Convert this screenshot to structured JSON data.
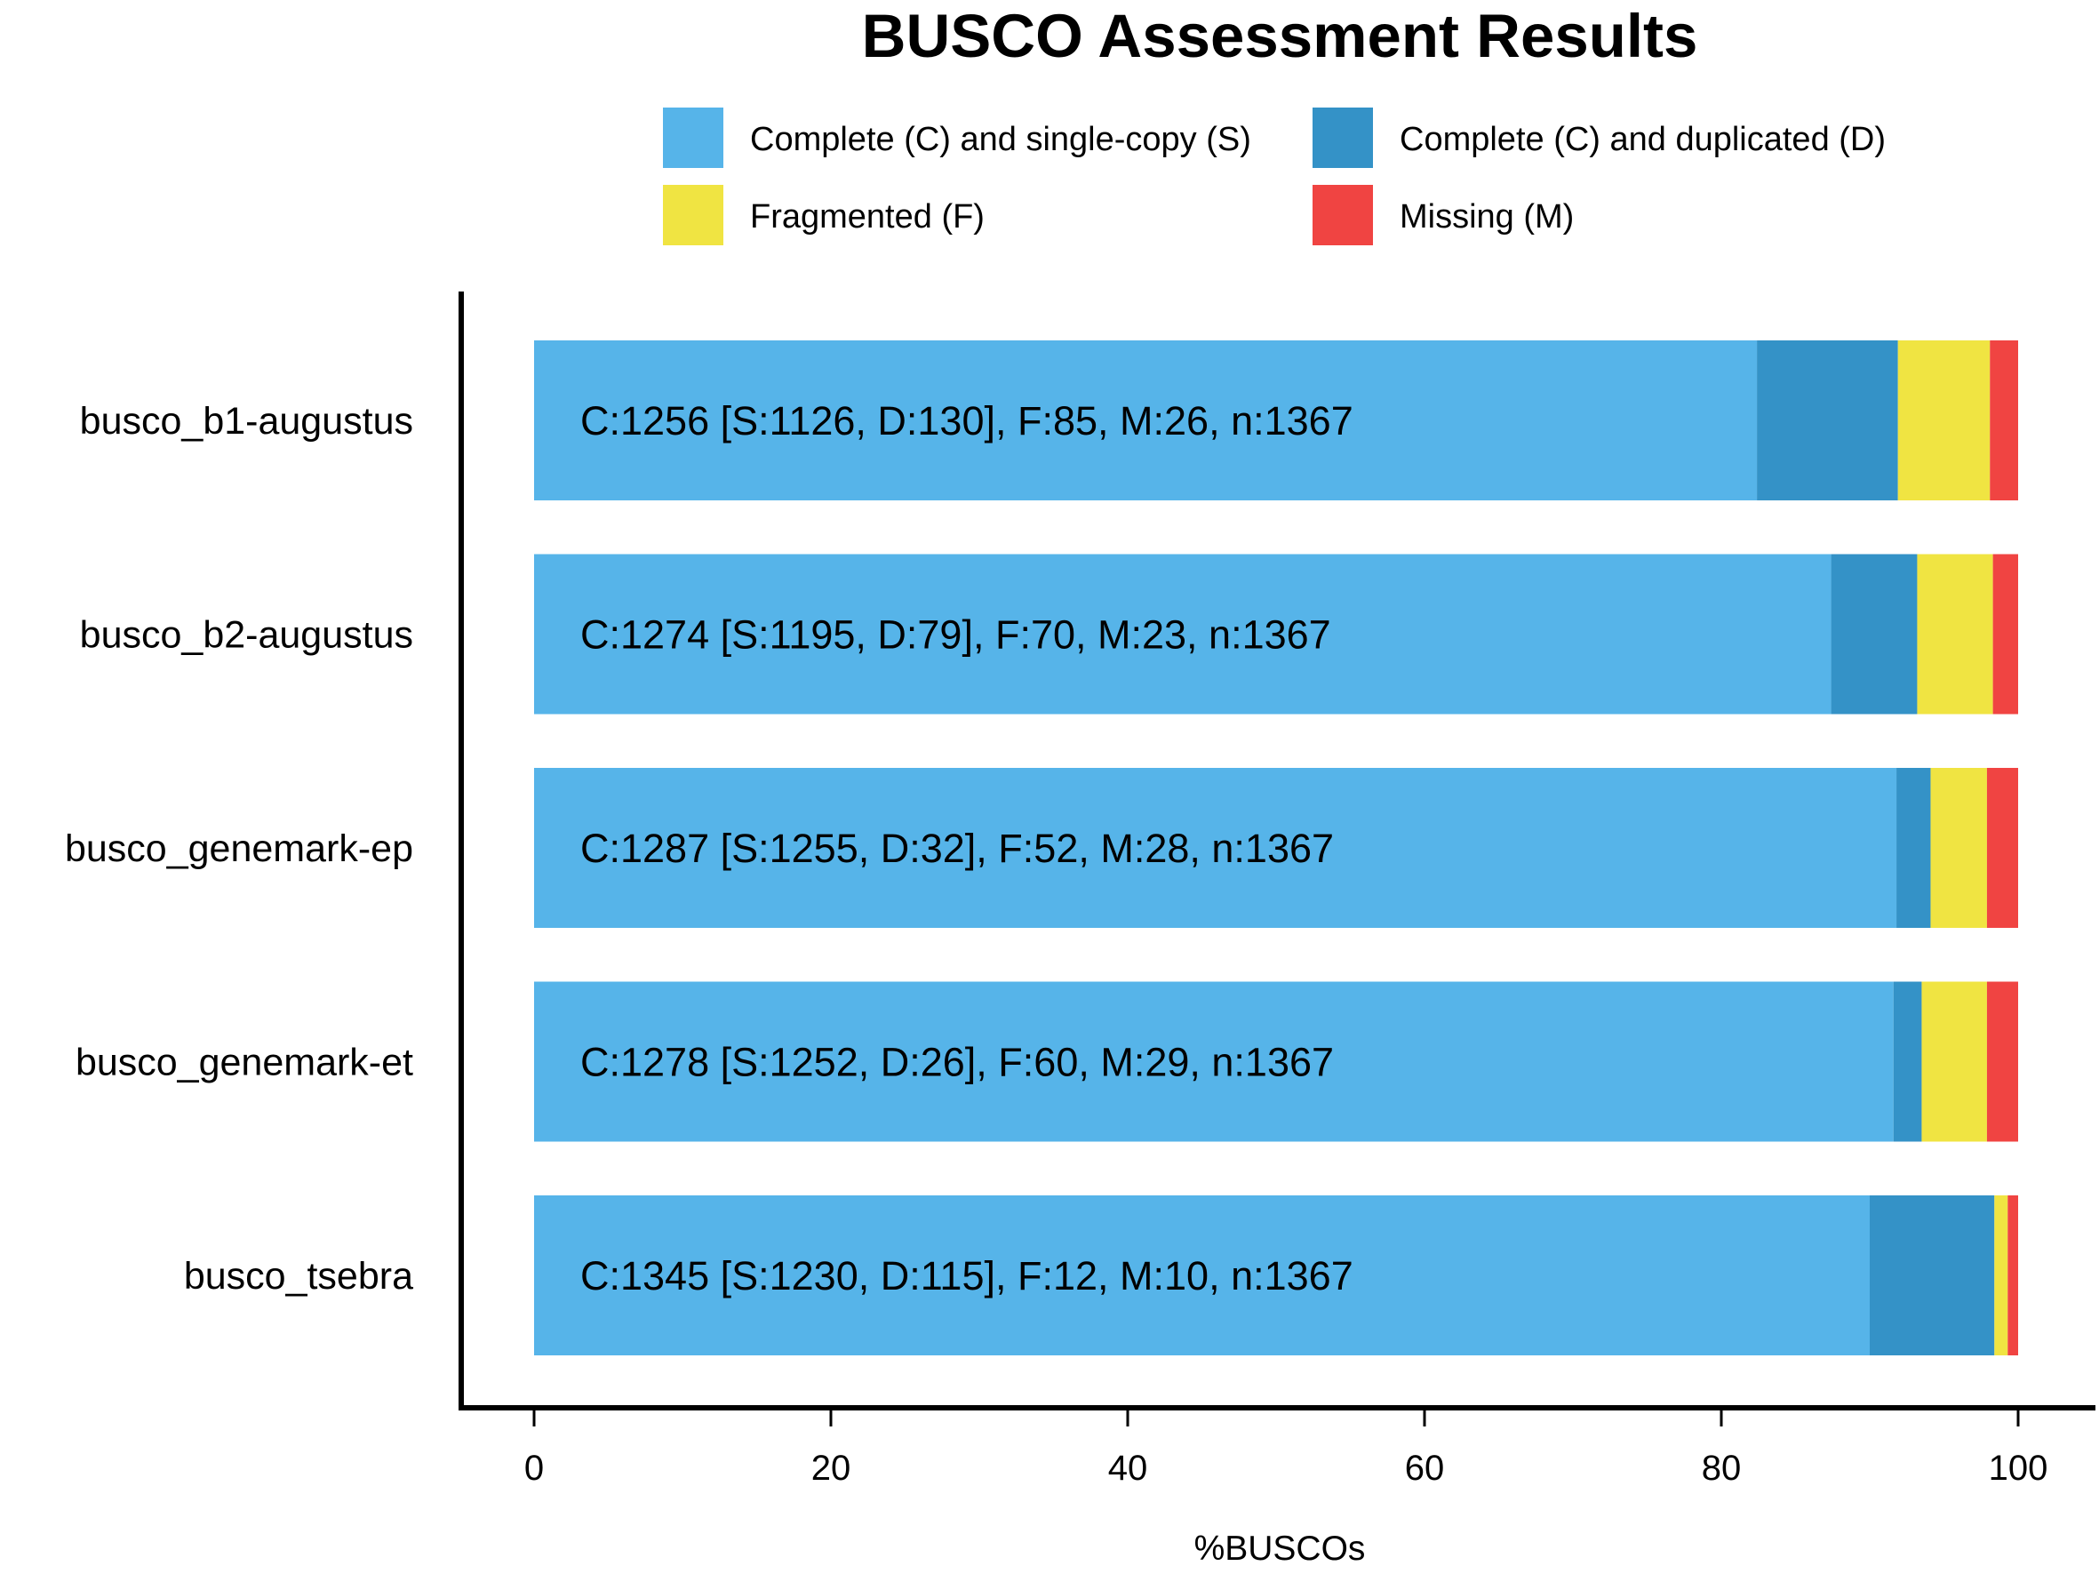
{
  "chart_data": {
    "type": "bar",
    "orientation": "horizontal",
    "stacked": true,
    "title": "BUSCO Assessment Results",
    "xlabel": "%BUSCOs",
    "ylabel": "",
    "xlim": [
      0,
      100
    ],
    "x_ticks": [
      "0",
      "20",
      "40",
      "60",
      "80",
      "100"
    ],
    "legend_position": "top",
    "grid": false,
    "categories": [
      "busco_b1-augustus",
      "busco_b2-augustus",
      "busco_genemark-ep",
      "busco_genemark-et",
      "busco_tsebra"
    ],
    "series": [
      {
        "name": "Complete (C) and single-copy (S)",
        "color": "#56b4e9",
        "values": [
          82.4,
          87.4,
          91.8,
          91.6,
          90.0
        ]
      },
      {
        "name": "Complete (C) and duplicated (D)",
        "color": "#3492c7",
        "values": [
          9.5,
          5.8,
          2.3,
          1.9,
          8.4
        ]
      },
      {
        "name": "Fragmented (F)",
        "color": "#f0e442",
        "values": [
          6.2,
          5.1,
          3.8,
          4.4,
          0.9
        ]
      },
      {
        "name": "Missing (M)",
        "color": "#f04442",
        "values": [
          1.9,
          1.7,
          2.1,
          2.1,
          0.7
        ]
      }
    ],
    "bar_labels": [
      "C:1256 [S:1126, D:130], F:85, M:26, n:1367",
      "C:1274 [S:1195, D:79], F:70, M:23, n:1367",
      "C:1287 [S:1255, D:32], F:52, M:28, n:1367",
      "C:1278 [S:1252, D:26], F:60, M:29, n:1367",
      "C:1345 [S:1230, D:115], F:12, M:10, n:1367"
    ]
  }
}
